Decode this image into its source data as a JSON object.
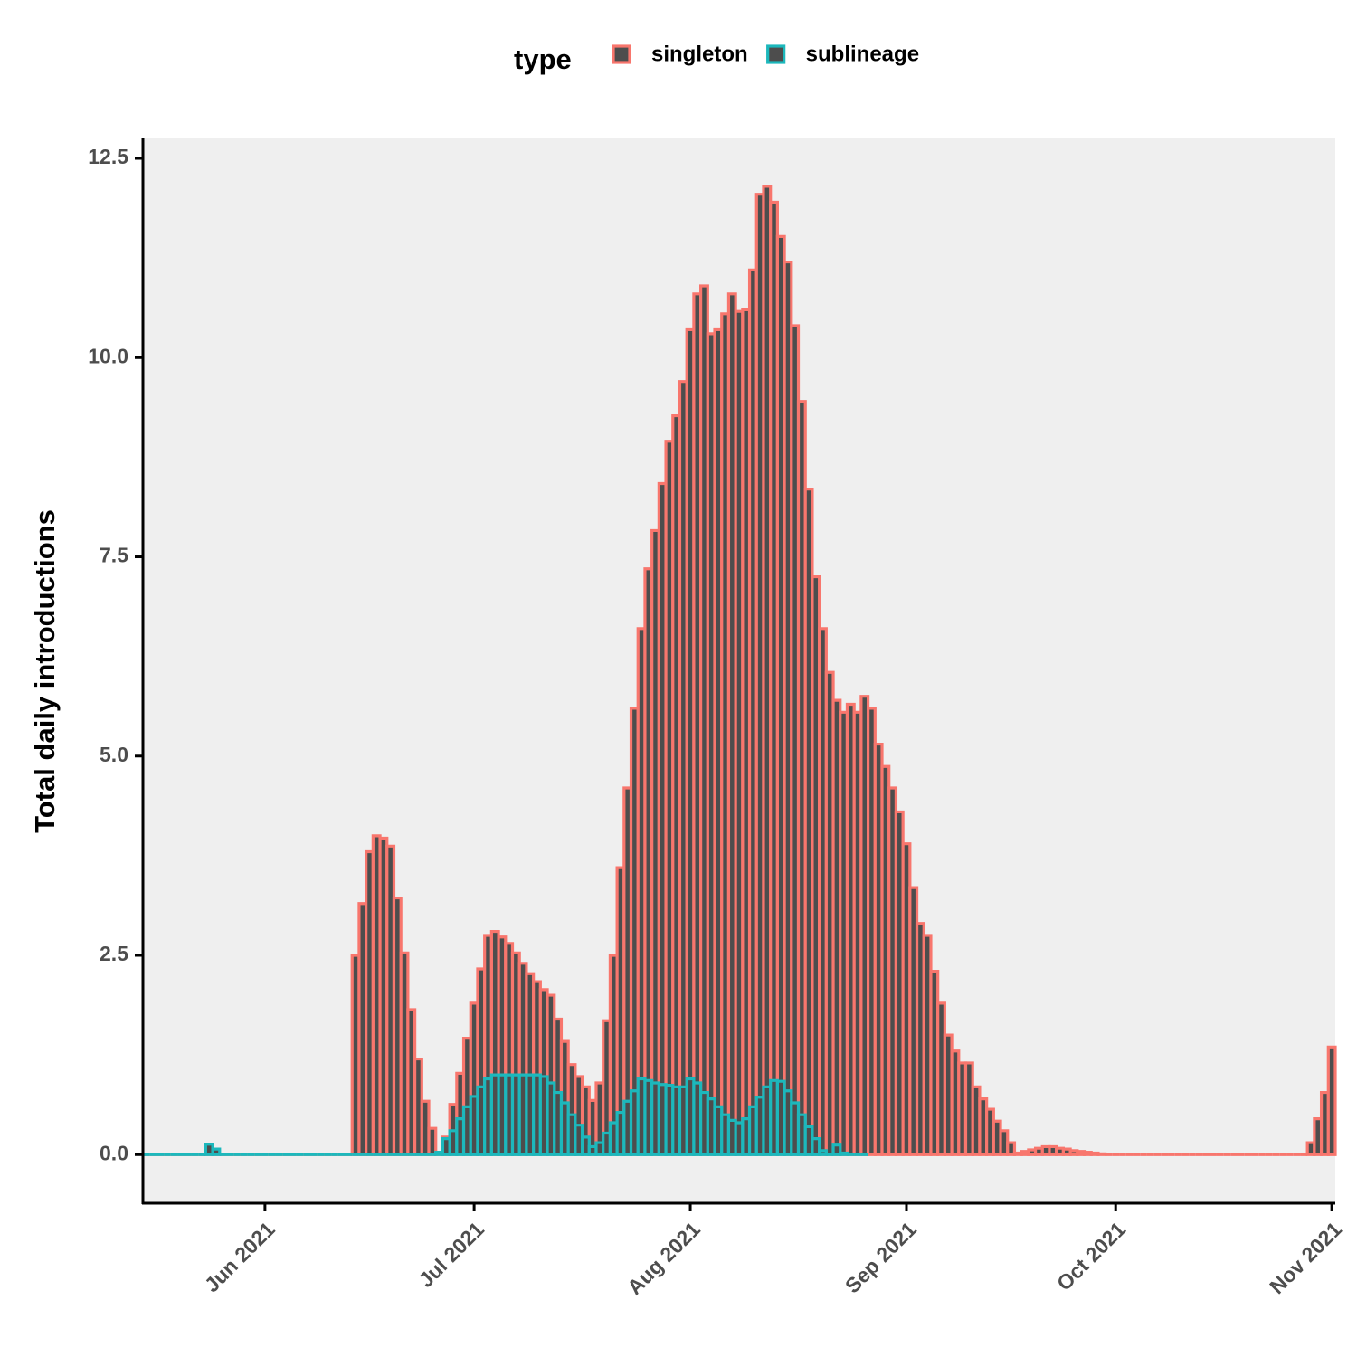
{
  "chart_data": {
    "type": "bar",
    "legend_title": "type",
    "y_label": "Total daily introductions",
    "x": [
      "2021-05-15",
      "2021-05-16",
      "2021-05-17",
      "2021-05-18",
      "2021-05-19",
      "2021-05-20",
      "2021-05-21",
      "2021-05-22",
      "2021-05-23",
      "2021-05-24",
      "2021-05-25",
      "2021-05-26",
      "2021-05-27",
      "2021-05-28",
      "2021-05-29",
      "2021-05-30",
      "2021-05-31",
      "2021-06-01",
      "2021-06-02",
      "2021-06-03",
      "2021-06-04",
      "2021-06-05",
      "2021-06-06",
      "2021-06-07",
      "2021-06-08",
      "2021-06-09",
      "2021-06-10",
      "2021-06-11",
      "2021-06-12",
      "2021-06-13",
      "2021-06-14",
      "2021-06-15",
      "2021-06-16",
      "2021-06-17",
      "2021-06-18",
      "2021-06-19",
      "2021-06-20",
      "2021-06-21",
      "2021-06-22",
      "2021-06-23",
      "2021-06-24",
      "2021-06-25",
      "2021-06-26",
      "2021-06-27",
      "2021-06-28",
      "2021-06-29",
      "2021-06-30",
      "2021-07-01",
      "2021-07-02",
      "2021-07-03",
      "2021-07-04",
      "2021-07-05",
      "2021-07-06",
      "2021-07-07",
      "2021-07-08",
      "2021-07-09",
      "2021-07-10",
      "2021-07-11",
      "2021-07-12",
      "2021-07-13",
      "2021-07-14",
      "2021-07-15",
      "2021-07-16",
      "2021-07-17",
      "2021-07-18",
      "2021-07-19",
      "2021-07-20",
      "2021-07-21",
      "2021-07-22",
      "2021-07-23",
      "2021-07-24",
      "2021-07-25",
      "2021-07-26",
      "2021-07-27",
      "2021-07-28",
      "2021-07-29",
      "2021-07-30",
      "2021-07-31",
      "2021-08-01",
      "2021-08-02",
      "2021-08-03",
      "2021-08-04",
      "2021-08-05",
      "2021-08-06",
      "2021-08-07",
      "2021-08-08",
      "2021-08-09",
      "2021-08-10",
      "2021-08-11",
      "2021-08-12",
      "2021-08-13",
      "2021-08-14",
      "2021-08-15",
      "2021-08-16",
      "2021-08-17",
      "2021-08-18",
      "2021-08-19",
      "2021-08-20",
      "2021-08-21",
      "2021-08-22",
      "2021-08-23",
      "2021-08-24",
      "2021-08-25",
      "2021-08-26",
      "2021-08-27",
      "2021-08-28",
      "2021-08-29",
      "2021-08-30",
      "2021-08-31",
      "2021-09-01",
      "2021-09-02",
      "2021-09-03",
      "2021-09-04",
      "2021-09-05",
      "2021-09-06",
      "2021-09-07",
      "2021-09-08",
      "2021-09-09",
      "2021-09-10",
      "2021-09-11",
      "2021-09-12",
      "2021-09-13",
      "2021-09-14",
      "2021-09-15",
      "2021-09-16",
      "2021-09-17",
      "2021-09-18",
      "2021-09-19",
      "2021-09-20",
      "2021-09-21",
      "2021-09-22",
      "2021-09-23",
      "2021-09-24",
      "2021-09-25",
      "2021-09-26",
      "2021-09-27",
      "2021-09-28",
      "2021-09-29",
      "2021-09-30",
      "2021-10-01",
      "2021-10-02",
      "2021-10-03",
      "2021-10-04",
      "2021-10-05",
      "2021-10-06",
      "2021-10-07",
      "2021-10-08",
      "2021-10-09",
      "2021-10-10",
      "2021-10-11",
      "2021-10-12",
      "2021-10-13",
      "2021-10-14",
      "2021-10-15",
      "2021-10-16",
      "2021-10-17",
      "2021-10-18",
      "2021-10-19",
      "2021-10-20",
      "2021-10-21",
      "2021-10-22",
      "2021-10-23",
      "2021-10-24",
      "2021-10-25",
      "2021-10-26",
      "2021-10-27",
      "2021-10-28",
      "2021-10-29",
      "2021-10-30",
      "2021-10-31",
      "2021-11-01"
    ],
    "series": [
      {
        "name": "singleton",
        "color": "#f8766d",
        "values": [
          0,
          0,
          0,
          0,
          0,
          0,
          0,
          0,
          0,
          0,
          0,
          0,
          0,
          0,
          0,
          0,
          0,
          0,
          0,
          0,
          0,
          0,
          0,
          0,
          0,
          0,
          0,
          0,
          0,
          0,
          2.5,
          3.15,
          3.8,
          4.0,
          3.97,
          3.87,
          3.22,
          2.53,
          1.82,
          1.2,
          0.67,
          0.33,
          0.03,
          0.22,
          0.63,
          1.02,
          1.46,
          1.9,
          2.33,
          2.75,
          2.8,
          2.73,
          2.65,
          2.53,
          2.4,
          2.27,
          2.17,
          2.07,
          2.0,
          1.7,
          1.42,
          1.13,
          0.98,
          0.85,
          0.68,
          0.9,
          1.68,
          2.5,
          3.6,
          4.6,
          5.6,
          6.6,
          7.35,
          7.83,
          8.42,
          8.95,
          9.27,
          9.7,
          10.35,
          10.8,
          10.9,
          10.3,
          10.35,
          10.55,
          10.8,
          10.58,
          10.6,
          11.1,
          12.05,
          12.15,
          11.95,
          11.52,
          11.2,
          10.4,
          9.45,
          8.35,
          7.25,
          6.6,
          6.05,
          5.7,
          5.55,
          5.65,
          5.55,
          5.75,
          5.6,
          5.15,
          4.87,
          4.6,
          4.3,
          3.9,
          3.35,
          2.9,
          2.75,
          2.3,
          1.9,
          1.5,
          1.3,
          1.15,
          1.15,
          0.85,
          0.7,
          0.57,
          0.42,
          0.3,
          0.15,
          0.02,
          0.04,
          0.06,
          0.08,
          0.1,
          0.1,
          0.08,
          0.07,
          0.05,
          0.04,
          0.03,
          0.02,
          0.01,
          0,
          0,
          0,
          0,
          0,
          0,
          0,
          0,
          0,
          0,
          0,
          0,
          0,
          0,
          0,
          0,
          0,
          0,
          0,
          0,
          0,
          0,
          0,
          0,
          0,
          0,
          0,
          0,
          0,
          0.15,
          0.45,
          0.78,
          1.35
        ]
      },
      {
        "name": "sublineage",
        "color": "#1cb8bc",
        "values": [
          0,
          0,
          0,
          0,
          0,
          0,
          0,
          0,
          0,
          0.13,
          0.07,
          0,
          0,
          0,
          0,
          0,
          0,
          0,
          0,
          0,
          0,
          0,
          0,
          0,
          0,
          0,
          0,
          0,
          0,
          0,
          0,
          0,
          0,
          0,
          0,
          0,
          0,
          0,
          0,
          0,
          0,
          0,
          0.03,
          0.2,
          0.3,
          0.45,
          0.6,
          0.73,
          0.85,
          0.95,
          1,
          1,
          1,
          1,
          1,
          1,
          1,
          0.98,
          0.9,
          0.78,
          0.65,
          0.5,
          0.37,
          0.22,
          0.1,
          0.15,
          0.27,
          0.4,
          0.53,
          0.67,
          0.8,
          0.95,
          0.93,
          0.9,
          0.88,
          0.87,
          0.85,
          0.85,
          0.95,
          0.9,
          0.78,
          0.7,
          0.6,
          0.5,
          0.43,
          0.4,
          0.45,
          0.6,
          0.72,
          0.85,
          0.93,
          0.92,
          0.8,
          0.65,
          0.5,
          0.35,
          0.2,
          0.05,
          0,
          0.12,
          0.02,
          0,
          0,
          0,
          null,
          null,
          null,
          null,
          null,
          null,
          null,
          null,
          null,
          null,
          null,
          null,
          null,
          null,
          null,
          null,
          null,
          null,
          null,
          null,
          null,
          null,
          null,
          null,
          null,
          null,
          null,
          null,
          null,
          null,
          null,
          null,
          null,
          null,
          null,
          null,
          null,
          null,
          null,
          null,
          null,
          null,
          null,
          null,
          null,
          null,
          null,
          null,
          null,
          null,
          null,
          null,
          null,
          null,
          null,
          null,
          null,
          null,
          null,
          null,
          null,
          null,
          null,
          null,
          null,
          null,
          null
        ]
      }
    ],
    "bar_fill": "#4d4d4d",
    "xlim": [
      "2021-05-15",
      "2021-11-01"
    ],
    "xticks": [
      {
        "value": "2021-06-01",
        "label": "Jun 2021"
      },
      {
        "value": "2021-07-01",
        "label": "Jul 2021"
      },
      {
        "value": "2021-08-01",
        "label": "Aug 2021"
      },
      {
        "value": "2021-09-01",
        "label": "Sep 2021"
      },
      {
        "value": "2021-10-01",
        "label": "Oct 2021"
      },
      {
        "value": "2021-11-01",
        "label": "Nov 2021"
      }
    ],
    "ylim": [
      -0.61,
      12.75
    ],
    "yticks": [
      {
        "value": 0,
        "label": "0.0"
      },
      2.5,
      {
        "value": 5,
        "label": "5.0"
      },
      7.5,
      {
        "value": 10,
        "label": "10.0"
      },
      12.5
    ],
    "grid": false,
    "legend": "top"
  }
}
